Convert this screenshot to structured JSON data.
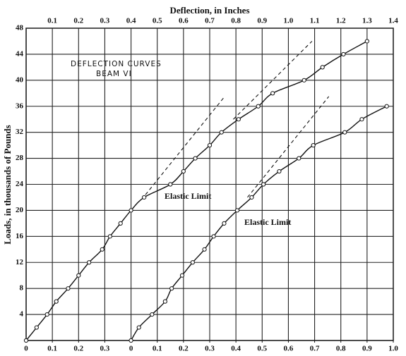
{
  "chart_data": {
    "type": "line",
    "title": "Deflection, in Inches",
    "y_label": "Loads, in thousands of Pounds",
    "annotations": [
      "DEFLECTION CURVES",
      "BEAM VI",
      "Elastic Limit",
      "Elastic Limit"
    ],
    "xlim": [
      0,
      1.4
    ],
    "xticks": [
      0.1,
      0.2,
      0.3,
      0.4,
      0.5,
      0.6,
      0.7,
      0.8,
      0.9,
      {
        "value": 1,
        "label": "1.0"
      },
      1.1,
      1.2,
      1.3,
      1.4
    ],
    "xticks_bottom": [
      0,
      0.1,
      0.2,
      0.3
    ],
    "x2lim": [
      -0.4,
      1.0
    ],
    "x2ticks": [
      0,
      0.1,
      0.2,
      0.3,
      0.4,
      0.5,
      0.6,
      0.7,
      0.8,
      0.9,
      {
        "value": 1,
        "label": "1.0"
      }
    ],
    "ylim": [
      0,
      48
    ],
    "yticks": [
      4,
      8,
      12,
      16,
      20,
      24,
      28,
      32,
      36,
      40,
      44,
      48
    ],
    "grid": true,
    "color": "#111111",
    "series": [
      {
        "axis": "x",
        "color": "#111111",
        "x": [
          0,
          0.04,
          0.08,
          0.115,
          0.16,
          0.2,
          0.24,
          0.29,
          0.32,
          0.36,
          0.4,
          0.45,
          0.55,
          0.6,
          0.645,
          0.7,
          0.745,
          0.81,
          0.885,
          0.94,
          1.06,
          1.13,
          1.21,
          1.3
        ],
        "values": [
          0,
          2,
          4,
          6,
          8,
          10,
          12,
          14,
          16,
          18,
          20,
          22,
          24,
          26,
          28,
          30,
          32,
          34,
          36,
          38,
          40,
          42,
          44,
          46
        ]
      },
      {
        "axis": "x2",
        "color": "#111111",
        "x": [
          0,
          0.03,
          0.08,
          0.13,
          0.155,
          0.195,
          0.235,
          0.28,
          0.315,
          0.355,
          0.405,
          0.46,
          0.505,
          0.565,
          0.64,
          0.695,
          0.815,
          0.88,
          0.975
        ],
        "values": [
          0,
          2,
          4,
          6,
          8,
          10,
          12,
          14,
          16,
          18,
          20,
          22,
          24,
          26,
          28,
          30,
          32,
          34,
          36
        ]
      }
    ],
    "guide_lines": [
      {
        "axis": "x",
        "x": [
          0.455,
          0.757
        ],
        "values": [
          22.4,
          37.5
        ]
      },
      {
        "axis": "x",
        "x": [
          0.79,
          1.09
        ],
        "values": [
          34,
          46
        ]
      },
      {
        "axis": "x2",
        "x": [
          0.444,
          0.754
        ],
        "values": [
          22,
          37.5
        ]
      }
    ]
  }
}
